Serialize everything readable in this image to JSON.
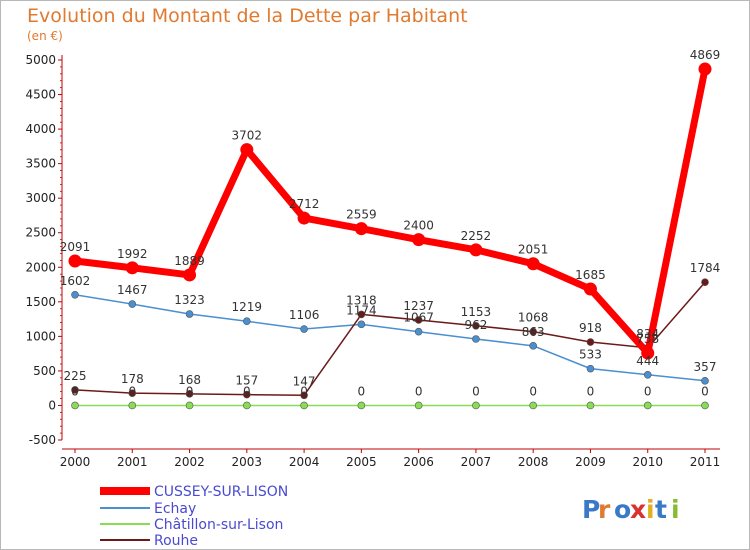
{
  "title": "Evolution du Montant de la Dette par Habitant",
  "unit_label": "(en €)",
  "logo_text": "Proxiti",
  "chart_data": {
    "type": "line",
    "title": "Evolution du Montant de la Dette par Habitant",
    "ylabel": "(en €)",
    "x": [
      "2000",
      "2001",
      "2002",
      "2003",
      "2004",
      "2005",
      "2006",
      "2007",
      "2008",
      "2009",
      "2010",
      "2011"
    ],
    "ylim": [
      -500,
      5000
    ],
    "yticks": [
      "-500",
      "0",
      "500",
      "1000",
      "1500",
      "2000",
      "2500",
      "3000",
      "3500",
      "4000",
      "4500",
      "5000"
    ],
    "grid": false,
    "legend_position": "bottom-left",
    "series": [
      {
        "name": "CUSSEY-SUR-LISON",
        "color": "#ff0000",
        "values": [
          2091,
          1992,
          1889,
          3702,
          2712,
          2559,
          2400,
          2252,
          2051,
          1685,
          758,
          4869
        ],
        "labels": [
          "2091",
          "1992",
          "1889",
          "3702",
          "2712",
          "2559",
          "2400",
          "2252",
          "2051",
          "1685",
          "758",
          "4869"
        ]
      },
      {
        "name": "Echay",
        "color": "#4a8fcf",
        "values": [
          1602,
          1467,
          1323,
          1219,
          1106,
          1174,
          1067,
          962,
          863,
          533,
          444,
          357
        ],
        "labels": [
          "1602",
          "1467",
          "1323",
          "1219",
          "1106",
          "1174",
          "1067",
          "962",
          "863",
          "533",
          "444",
          "357"
        ]
      },
      {
        "name": "Châtillon-sur-Lison",
        "color": "#88dd55",
        "values": [
          0,
          0,
          0,
          0,
          0,
          0,
          0,
          0,
          0,
          0,
          0,
          0
        ],
        "labels": [
          "0",
          "0",
          "0",
          "0",
          "0",
          "0",
          "0",
          "0",
          "0",
          "0",
          "0",
          "0"
        ]
      },
      {
        "name": "Rouhe",
        "color": "#6b1a1a",
        "values": [
          225,
          178,
          168,
          157,
          147,
          1318,
          1237,
          1153,
          1068,
          918,
          834,
          1784
        ],
        "labels": [
          "225",
          "178",
          "168",
          "157",
          "147",
          "1318",
          "1237",
          "1153",
          "1068",
          "918",
          "834",
          "1784"
        ]
      }
    ]
  }
}
